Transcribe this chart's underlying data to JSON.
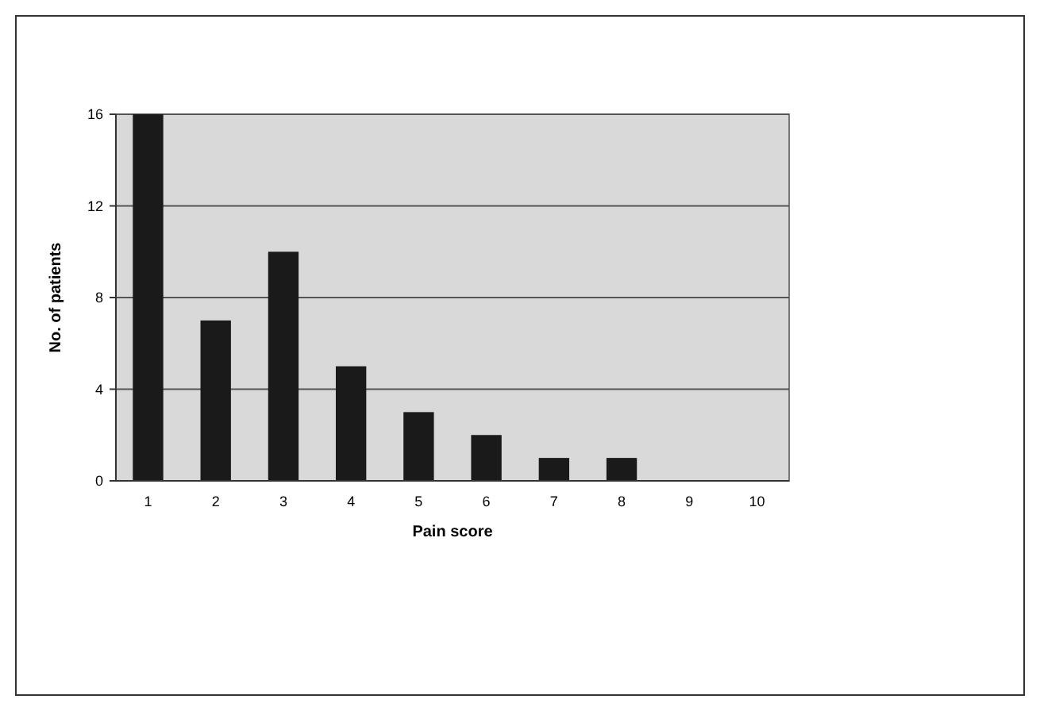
{
  "chart_data": {
    "type": "bar",
    "xlabel": "Pain score",
    "ylabel": "No. of patients",
    "categories": [
      "1",
      "2",
      "3",
      "4",
      "5",
      "6",
      "7",
      "8",
      "9",
      "10"
    ],
    "values": [
      16,
      7,
      10,
      5,
      3,
      2,
      1,
      1,
      0,
      0
    ],
    "color": "#1a1a1a",
    "ylim": [
      0,
      16
    ],
    "yticks": [
      0,
      4,
      8,
      12,
      16
    ],
    "grid": "y"
  }
}
